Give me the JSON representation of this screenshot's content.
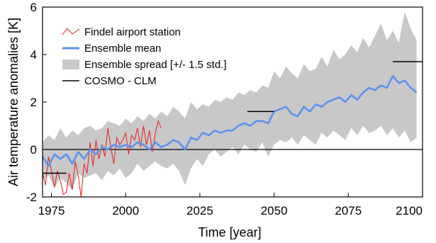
{
  "chart_data": {
    "type": "line",
    "title": "",
    "xlabel": "Time [year]",
    "ylabel": "Air temperature anomalies [K]",
    "xlim": [
      1972,
      2100
    ],
    "ylim": [
      -2,
      6
    ],
    "xticks": [
      1975,
      2000,
      2025,
      2050,
      2075,
      2100
    ],
    "yticks": [
      -2,
      0,
      2,
      4,
      6
    ],
    "grid": false,
    "legend_position": "top-left",
    "legend": [
      {
        "key": "station",
        "label": "Findel airport station",
        "color": "#e8201e",
        "kind": "thin-line"
      },
      {
        "key": "mean",
        "label": "Ensemble mean",
        "color": "#5b93f0",
        "kind": "thick-line"
      },
      {
        "key": "spread",
        "label": "Ensemble spread [+/- 1.5 std.]",
        "color": "#c8c8c8",
        "kind": "area"
      },
      {
        "key": "cosmo",
        "label": "COSMO - CLM",
        "color": "#000000",
        "kind": "segments"
      }
    ],
    "reference_line": {
      "y": 0,
      "color": "#000000"
    },
    "series": [
      {
        "name": "Ensemble mean",
        "color": "#5b93f0",
        "x": [
          1972,
          1974,
          1976,
          1978,
          1980,
          1982,
          1984,
          1986,
          1988,
          1990,
          1992,
          1994,
          1996,
          1998,
          2000,
          2002,
          2004,
          2006,
          2008,
          2010,
          2012,
          2014,
          2016,
          2018,
          2020,
          2022,
          2024,
          2026,
          2028,
          2030,
          2032,
          2034,
          2036,
          2038,
          2040,
          2042,
          2044,
          2046,
          2048,
          2050,
          2052,
          2054,
          2056,
          2058,
          2060,
          2062,
          2064,
          2066,
          2068,
          2070,
          2072,
          2074,
          2076,
          2078,
          2080,
          2082,
          2084,
          2086,
          2088,
          2090,
          2092,
          2094,
          2096,
          2098
        ],
        "y": [
          -0.3,
          -0.7,
          -0.2,
          -0.4,
          -0.2,
          -0.6,
          -0.1,
          -0.4,
          0.0,
          -0.2,
          0.1,
          0.0,
          0.2,
          0.1,
          0.2,
          0.1,
          0.3,
          0.2,
          0.0,
          0.3,
          0.1,
          0.2,
          0.4,
          0.3,
          0.0,
          0.5,
          0.4,
          0.7,
          0.6,
          0.8,
          0.7,
          0.8,
          0.8,
          1.0,
          1.1,
          1.0,
          1.2,
          1.2,
          1.1,
          1.6,
          1.7,
          1.8,
          1.5,
          1.4,
          1.8,
          1.6,
          1.9,
          1.8,
          2.0,
          2.1,
          2.2,
          2.0,
          2.3,
          2.1,
          2.4,
          2.6,
          2.5,
          2.7,
          2.6,
          3.1,
          2.8,
          2.9,
          2.6,
          2.4
        ]
      },
      {
        "name": "Findel airport station",
        "color": "#e8201e",
        "x": [
          1972,
          1973,
          1974,
          1975,
          1976,
          1977,
          1978,
          1979,
          1980,
          1981,
          1982,
          1983,
          1984,
          1985,
          1986,
          1987,
          1988,
          1989,
          1990,
          1991,
          1992,
          1993,
          1994,
          1995,
          1996,
          1997,
          1998,
          1999,
          2000,
          2001,
          2002,
          2003,
          2004,
          2005,
          2006,
          2007,
          2008,
          2009,
          2010,
          2011,
          2012
        ],
        "y": [
          -1.0,
          -1.5,
          -0.3,
          -0.9,
          -1.6,
          -0.9,
          -1.3,
          -1.9,
          -1.8,
          -1.0,
          -1.7,
          -0.5,
          -1.1,
          -2.0,
          -0.6,
          -1.0,
          0.3,
          -0.7,
          0.4,
          -0.4,
          0.2,
          -0.3,
          0.9,
          0.1,
          -0.6,
          0.5,
          0.2,
          0.4,
          0.7,
          -0.2,
          0.6,
          0.4,
          0.9,
          0.1,
          1.0,
          0.2,
          0.8,
          -0.1,
          0.7,
          1.2,
          0.9
        ]
      },
      {
        "name": "Ensemble spread [+/- 1.5 std.]",
        "color": "#c8c8c8",
        "x": [
          1972,
          1974,
          1976,
          1978,
          1980,
          1982,
          1984,
          1986,
          1988,
          1990,
          1992,
          1994,
          1996,
          1998,
          2000,
          2002,
          2004,
          2006,
          2008,
          2010,
          2012,
          2014,
          2016,
          2018,
          2020,
          2022,
          2024,
          2026,
          2028,
          2030,
          2032,
          2034,
          2036,
          2038,
          2040,
          2042,
          2044,
          2046,
          2048,
          2050,
          2052,
          2054,
          2056,
          2058,
          2060,
          2062,
          2064,
          2066,
          2068,
          2070,
          2072,
          2074,
          2076,
          2078,
          2080,
          2082,
          2084,
          2086,
          2088,
          2090,
          2092,
          2094,
          2096,
          2098
        ],
        "y_low": [
          -1.3,
          -1.1,
          -1.6,
          -1.2,
          -1.4,
          -1.7,
          -1.0,
          -1.2,
          -1.1,
          -1.0,
          -1.3,
          -0.9,
          -1.1,
          -0.8,
          -1.2,
          -1.0,
          -0.6,
          -0.9,
          -0.7,
          -0.5,
          -0.7,
          -0.8,
          -0.6,
          -0.9,
          -1.5,
          -0.8,
          -0.4,
          -0.7,
          -0.2,
          0.0,
          -0.3,
          -0.1,
          0.1,
          -0.2,
          0.2,
          0.0,
          -0.1,
          0.3,
          -0.3,
          0.2,
          0.4,
          0.3,
          0.5,
          0.2,
          0.6,
          0.4,
          0.2,
          0.7,
          0.5,
          0.8,
          0.6,
          0.4,
          0.9,
          0.6,
          1.0,
          0.7,
          0.8,
          1.0,
          0.6,
          0.9,
          0.5,
          0.8,
          0.3,
          0.5
        ],
        "y_high": [
          0.3,
          0.6,
          0.4,
          0.9,
          0.5,
          0.8,
          0.6,
          0.9,
          1.0,
          0.8,
          0.9,
          1.2,
          1.1,
          1.0,
          1.3,
          1.1,
          1.4,
          1.2,
          1.5,
          1.3,
          1.6,
          1.4,
          1.8,
          1.6,
          1.3,
          2.0,
          1.7,
          1.9,
          1.8,
          2.1,
          2.0,
          2.2,
          2.1,
          2.4,
          2.3,
          2.5,
          2.4,
          2.7,
          2.6,
          3.3,
          3.0,
          3.5,
          3.2,
          3.0,
          3.6,
          3.3,
          3.4,
          3.9,
          3.5,
          4.2,
          3.8,
          4.0,
          4.4,
          4.1,
          4.7,
          4.3,
          4.8,
          5.3,
          4.6,
          5.0,
          4.5,
          5.8,
          5.1,
          4.6
        ]
      }
    ],
    "segments": [
      {
        "x1": 1971,
        "x2": 1980,
        "y": -1.0
      },
      {
        "x1": 2041,
        "x2": 2050,
        "y": 1.6
      },
      {
        "x1": 2090,
        "x2": 2100,
        "y": 3.7
      }
    ]
  }
}
